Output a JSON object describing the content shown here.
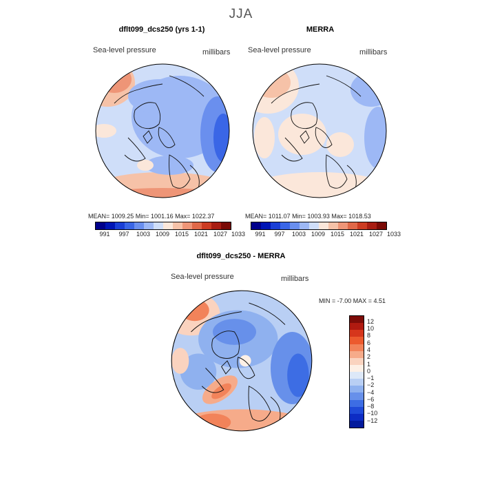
{
  "season": "JJA",
  "panels": [
    {
      "title": "dflt099_dcs250 (yrs 1-1)",
      "variable": "Sea-level pressure",
      "units": "millibars",
      "stats": {
        "mean": "1009.25",
        "min": "1001.16",
        "max": "1022.37"
      },
      "stats_text": "MEAN= 1009.25   Min= 1001.16   Max= 1022.37"
    },
    {
      "title": "MERRA",
      "variable": "Sea-level pressure",
      "units": "millibars",
      "stats": {
        "mean": "1011.07",
        "min": "1003.93",
        "max": "1018.53"
      },
      "stats_text": "MEAN= 1011.07   Min= 1003.93   Max= 1018.53"
    }
  ],
  "abs_colorbar": {
    "colors": [
      "#00008b",
      "#0015b5",
      "#1a3fd6",
      "#3a66e6",
      "#6a8fee",
      "#9db8f5",
      "#cfdef9",
      "#fbe7da",
      "#f6c2a8",
      "#ee9577",
      "#e06848",
      "#cc3c22",
      "#a81d12",
      "#7a0a06"
    ],
    "tick_labels": [
      "991",
      "997",
      "1003",
      "1009",
      "1015",
      "1021",
      "1027",
      "1033"
    ]
  },
  "diff_panel": {
    "title": "dflt099_dcs250 - MERRA",
    "variable": "Sea-level pressure",
    "units": "millibars",
    "min_max_text": "MIN =   -7.00  MAX =    4.51",
    "min": "-7.00",
    "max": "4.51"
  },
  "diff_colorbar": {
    "colors": [
      "#7d0c08",
      "#b01a10",
      "#d6361c",
      "#ec5a2e",
      "#f2835a",
      "#f6ab8a",
      "#fad3bf",
      "#fdf0e6",
      "#dde8f8",
      "#b9cff4",
      "#8fb1ef",
      "#6790ea",
      "#3d6de4",
      "#1f4ad8",
      "#0d2cc4",
      "#031a9c"
    ],
    "tick_labels": [
      "12",
      "10",
      "8",
      "6",
      "4",
      "2",
      "1",
      "0",
      "−1",
      "−2",
      "−4",
      "−6",
      "−8",
      "−10",
      "−12"
    ]
  }
}
